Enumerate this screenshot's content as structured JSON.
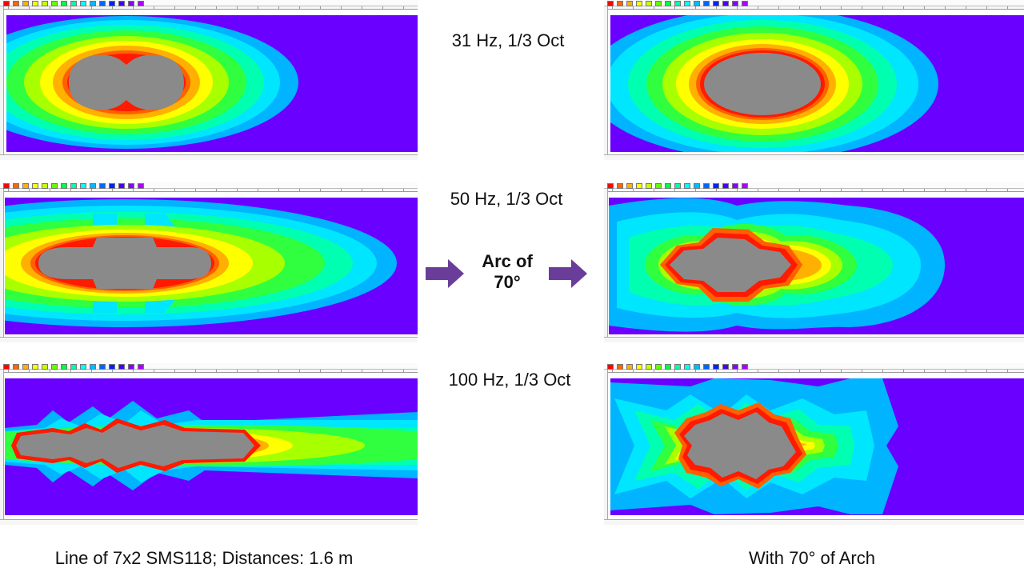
{
  "left_labels": {
    "row1": "31 Hz, 1/3 Oct",
    "row2": "50 Hz, 1/3 Oct",
    "row3": "100 Hz, 1/3 Oct"
  },
  "center": {
    "arc_line1": "Arc of",
    "arc_line2": "70°"
  },
  "captions": {
    "left": "Line of 7x2  SMS118; Distances:  1.6 m",
    "right": "With 70° of Arch"
  },
  "colors": {
    "background": "#6a00ff",
    "core": "#8a8a8a",
    "arrow": "#6a3d9a"
  },
  "legend_colors": [
    "#ff0000",
    "#ff6600",
    "#ffb000",
    "#ffff00",
    "#c8ff00",
    "#66ff00",
    "#00ff44",
    "#00ffaa",
    "#00ffff",
    "#00bbff",
    "#0066ff",
    "#0022ff",
    "#4400ff",
    "#8800ff",
    "#aa00ff"
  ]
}
